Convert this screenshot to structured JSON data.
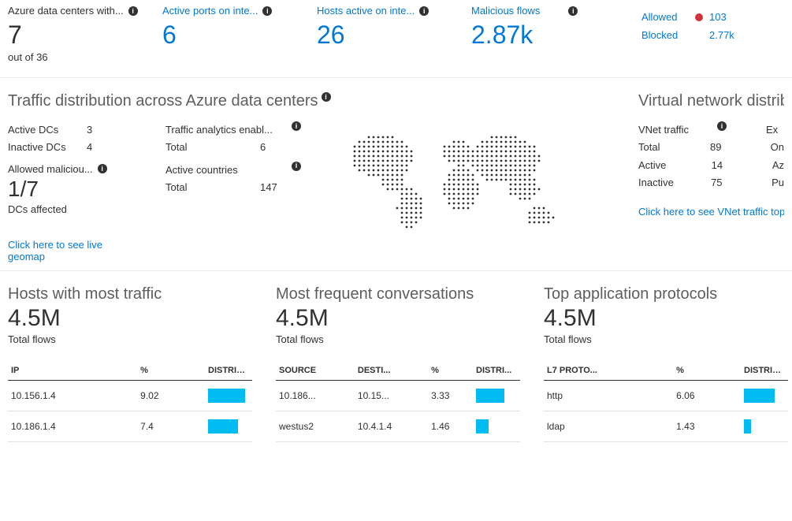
{
  "colors": {
    "link": "#0078d4",
    "text": "#323130",
    "muted": "#605e5c",
    "bar": "#00bcf2",
    "alert": "#d13438",
    "divider": "#e1dfdd"
  },
  "top_metrics": [
    {
      "label": "Azure data centers with...",
      "value": "7",
      "sub": "out of 36",
      "link": false
    },
    {
      "label": "Active ports on inte...",
      "value": "6",
      "sub": "",
      "link": true
    },
    {
      "label": "Hosts active on inte...",
      "value": "26",
      "sub": "",
      "link": true
    },
    {
      "label": "Malicious flows",
      "value": "2.87k",
      "sub": "",
      "link": true
    }
  ],
  "flow_summary": {
    "allowed_label": "Allowed",
    "allowed_value": "103",
    "allowed_alert": true,
    "blocked_label": "Blocked",
    "blocked_value": "2.77k"
  },
  "traffic_dist": {
    "title": "Traffic distribution across Azure data centers",
    "active_dcs_label": "Active DCs",
    "active_dcs": "3",
    "inactive_dcs_label": "Inactive DCs",
    "inactive_dcs": "4",
    "allowed_mal_label": "Allowed maliciou...",
    "allowed_mal_value": "1/7",
    "allowed_mal_foot": "DCs affected",
    "analytics_label": "Traffic analytics enabl...",
    "analytics_total_label": "Total",
    "analytics_total": "6",
    "countries_label": "Active countries",
    "countries_total_label": "Total",
    "countries_total": "147",
    "geomap_link": "Click here to see live geomap",
    "map_dot_color": "#323130"
  },
  "vnet": {
    "title": "Virtual network distribu",
    "rows": [
      {
        "k": "VNet traffic",
        "v": "",
        "info": true,
        "extra": "Ex"
      },
      {
        "k": "Total",
        "v": "89",
        "extra": "On"
      },
      {
        "k": "Active",
        "v": "14",
        "extra": "Az"
      },
      {
        "k": "Inactive",
        "v": "75",
        "extra": "Pu"
      }
    ],
    "link": "Click here to see VNet traffic topol"
  },
  "hosts_table": {
    "title": "Hosts with most traffic",
    "big": "4.5M",
    "sub": "Total flows",
    "columns": [
      "IP",
      "%",
      "DISTRIBU..."
    ],
    "max_pct": 9.02,
    "rows": [
      {
        "ip": "10.156.1.4",
        "pct": "9.02",
        "bar": 90
      },
      {
        "ip": "10.186.1.4",
        "pct": "7.4",
        "bar": 74
      }
    ]
  },
  "conv_table": {
    "title": "Most frequent conversations",
    "big": "4.5M",
    "sub": "Total flows",
    "columns": [
      "SOURCE",
      "DESTI...",
      "%",
      "DISTRI..."
    ],
    "rows": [
      {
        "src": "10.186...",
        "dst": "10.15...",
        "pct": "3.33",
        "bar": 70
      },
      {
        "src": "westus2",
        "dst": "10.4.1.4",
        "pct": "1.46",
        "bar": 30
      }
    ]
  },
  "proto_table": {
    "title": "Top application protocols",
    "big": "4.5M",
    "sub": "Total flows",
    "columns": [
      "L7 PROTO...",
      "%",
      "DISTRIBU..."
    ],
    "rows": [
      {
        "proto": "http",
        "pct": "6.06",
        "bar": 75
      },
      {
        "proto": "ldap",
        "pct": "1.43",
        "bar": 18
      }
    ]
  }
}
